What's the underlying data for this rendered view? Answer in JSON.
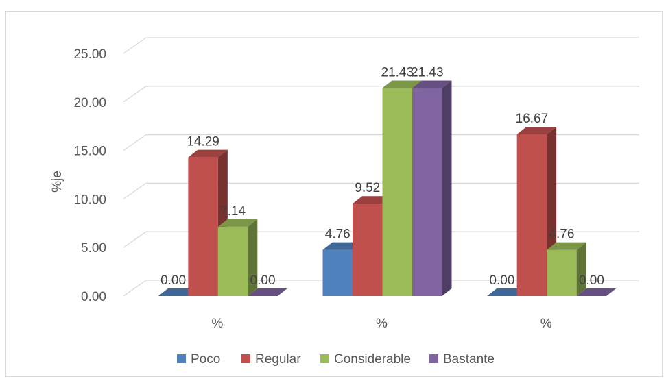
{
  "chart_data": {
    "type": "bar",
    "title": "",
    "xlabel": "",
    "ylabel": "%je",
    "categories": [
      "%",
      "%",
      "%"
    ],
    "series": [
      {
        "name": "Poco",
        "color": "#4f81bd",
        "values": [
          0.0,
          4.76,
          0.0
        ]
      },
      {
        "name": "Regular",
        "color": "#c0504d",
        "values": [
          14.29,
          9.52,
          16.67
        ]
      },
      {
        "name": "Considerable",
        "color": "#9bbb59",
        "values": [
          7.14,
          21.43,
          4.76
        ]
      },
      {
        "name": "Bastante",
        "color": "#8064a2",
        "values": [
          0.0,
          21.43,
          0.0
        ]
      }
    ],
    "yticks": [
      "0.00",
      "5.00",
      "10.00",
      "15.00",
      "20.00",
      "25.00"
    ],
    "ylim": [
      0,
      25
    ],
    "grid": true,
    "legend": "bottom",
    "style": "3d-clustered-column"
  }
}
